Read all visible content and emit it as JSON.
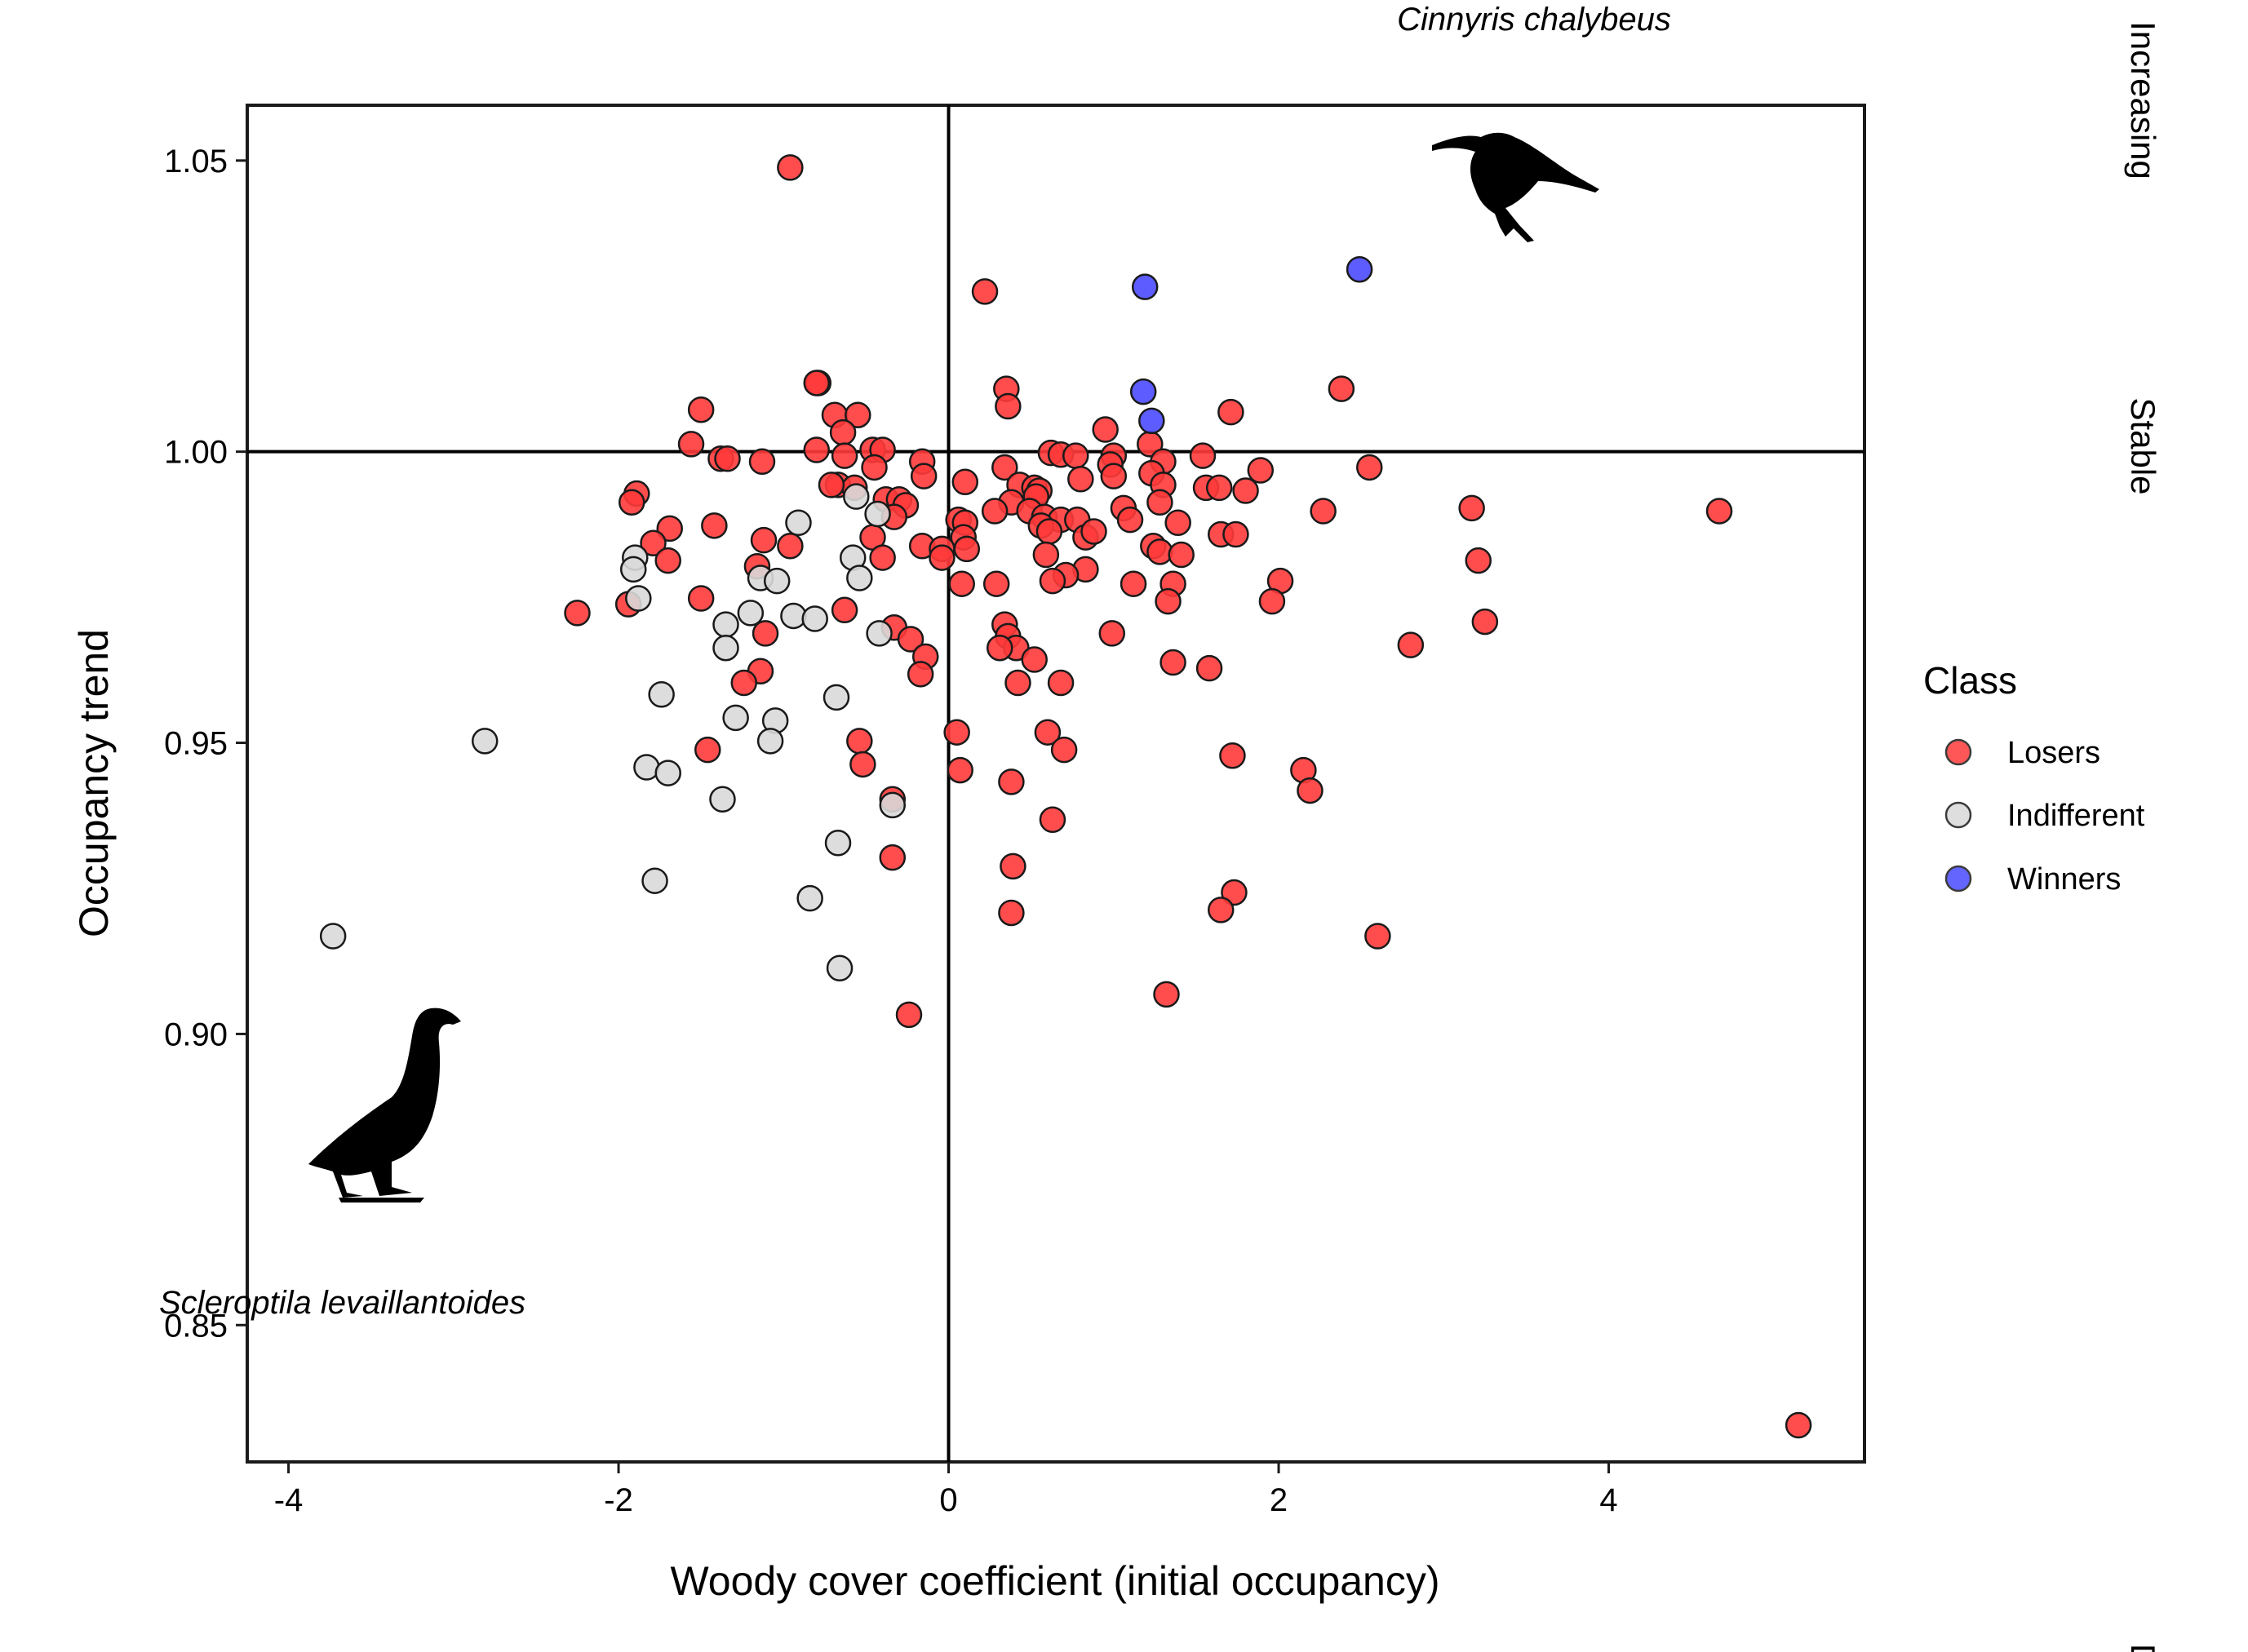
{
  "chart_data": {
    "type": "scatter",
    "xlabel": "Woody cover coefficient (initial occupancy)",
    "ylabel": "Occupancy trend",
    "xlim": [
      -4.25,
      5.55
    ],
    "ylim": [
      0.8265,
      1.0595
    ],
    "x_ticks": [
      -4,
      -2,
      0,
      2,
      4
    ],
    "x_tick_labels": [
      "-4",
      "-2",
      "0",
      "2",
      "4"
    ],
    "y_ticks": [
      0.85,
      0.9,
      0.95,
      1.0,
      1.05
    ],
    "y_tick_labels": [
      "0.85",
      "0.90",
      "0.95",
      "1.00",
      "1.05"
    ],
    "reference_lines": {
      "x": 0,
      "y": 1.0
    },
    "grid": false,
    "legend": {
      "title": "Class",
      "placement": "right",
      "entries": [
        {
          "label": "Losers",
          "color": "#ff3a3a"
        },
        {
          "label": "Indifferent",
          "color": "#d9d9d9"
        },
        {
          "label": "Winners",
          "color": "#4a4aff"
        }
      ]
    },
    "side_labels": [
      "Increasing",
      "Stable",
      "D"
    ],
    "annotations": {
      "top_species": "Cinnyris chalybeus",
      "bottom_species": "Scleroptila levaillantoides"
    },
    "series": [
      {
        "name": "Losers",
        "color": "#ff3a3a",
        "points": [
          [
            -0.96,
            1.0488
          ],
          [
            0.22,
            1.0275
          ],
          [
            -0.79,
            1.0118
          ],
          [
            -0.8,
            1.0118
          ],
          [
            0.35,
            1.0108
          ],
          [
            2.38,
            1.0108
          ],
          [
            0.36,
            1.0078
          ],
          [
            -1.5,
            1.0072
          ],
          [
            1.71,
            1.0068
          ],
          [
            -0.69,
            1.0063
          ],
          [
            -0.55,
            1.0063
          ],
          [
            -0.64,
            1.0033
          ],
          [
            0.95,
            1.0038
          ],
          [
            -1.56,
            1.0013
          ],
          [
            -0.8,
            1.0003
          ],
          [
            -0.46,
            1.0003
          ],
          [
            -0.4,
            1.0003
          ],
          [
            1.22,
            1.0013
          ],
          [
            0.62,
            0.9998
          ],
          [
            0.68,
            0.9995
          ],
          [
            0.77,
            0.9993
          ],
          [
            1.0,
            0.9993
          ],
          [
            1.54,
            0.9993
          ],
          [
            -1.38,
            0.9988
          ],
          [
            -1.34,
            0.9988
          ],
          [
            -1.13,
            0.9983
          ],
          [
            -0.63,
            0.9993
          ],
          [
            -0.45,
            0.9973
          ],
          [
            -0.16,
            0.9983
          ],
          [
            1.3,
            0.9983
          ],
          [
            0.98,
            0.9978
          ],
          [
            0.34,
            0.9973
          ],
          [
            2.55,
            0.9973
          ],
          [
            1.89,
            0.9968
          ],
          [
            -0.15,
            0.9958
          ],
          [
            -0.67,
            0.9943
          ],
          [
            -0.57,
            0.9938
          ],
          [
            -0.71,
            0.9943
          ],
          [
            0.1,
            0.9948
          ],
          [
            0.43,
            0.9943
          ],
          [
            0.52,
            0.9938
          ],
          [
            0.55,
            0.9933
          ],
          [
            1.23,
            0.9963
          ],
          [
            1.0,
            0.9958
          ],
          [
            0.8,
            0.9953
          ],
          [
            1.3,
            0.9943
          ],
          [
            1.56,
            0.9938
          ],
          [
            1.64,
            0.9938
          ],
          [
            1.8,
            0.9933
          ],
          [
            -1.89,
            0.9928
          ],
          [
            -0.38,
            0.9918
          ],
          [
            -0.3,
            0.9918
          ],
          [
            -0.26,
            0.9908
          ],
          [
            0.38,
            0.9913
          ],
          [
            0.53,
            0.9923
          ],
          [
            1.28,
            0.9913
          ],
          [
            1.06,
            0.9903
          ],
          [
            -1.92,
            0.9913
          ],
          [
            0.28,
            0.9898
          ],
          [
            0.49,
            0.9898
          ],
          [
            0.58,
            0.9888
          ],
          [
            0.68,
            0.9883
          ],
          [
            0.78,
            0.9883
          ],
          [
            2.27,
            0.9898
          ],
          [
            3.17,
            0.9903
          ],
          [
            4.67,
            0.9898
          ],
          [
            -0.33,
            0.9888
          ],
          [
            0.06,
            0.9883
          ],
          [
            0.1,
            0.9878
          ],
          [
            0.56,
            0.9873
          ],
          [
            0.61,
            0.9863
          ],
          [
            0.83,
            0.9853
          ],
          [
            0.88,
            0.9863
          ],
          [
            1.1,
            0.9883
          ],
          [
            1.39,
            0.9878
          ],
          [
            1.65,
            0.9858
          ],
          [
            1.74,
            0.9858
          ],
          [
            -1.42,
            0.9873
          ],
          [
            -1.69,
            0.9868
          ],
          [
            -1.79,
            0.9843
          ],
          [
            -0.46,
            0.9853
          ],
          [
            0.09,
            0.9853
          ],
          [
            -1.12,
            0.9848
          ],
          [
            -0.96,
            0.9838
          ],
          [
            -0.16,
            0.9838
          ],
          [
            1.24,
            0.9838
          ],
          [
            1.28,
            0.9828
          ],
          [
            -0.04,
            0.9833
          ],
          [
            0.11,
            0.9833
          ],
          [
            -0.04,
            0.9818
          ],
          [
            -0.4,
            0.9818
          ],
          [
            -1.7,
            0.9813
          ],
          [
            -1.16,
            0.9803
          ],
          [
            0.59,
            0.9823
          ],
          [
            1.41,
            0.9823
          ],
          [
            3.21,
            0.9813
          ],
          [
            0.83,
            0.9798
          ],
          [
            0.71,
            0.9788
          ],
          [
            0.63,
            0.9778
          ],
          [
            2.01,
            0.9778
          ],
          [
            0.08,
            0.9773
          ],
          [
            0.29,
            0.9773
          ],
          [
            1.12,
            0.9773
          ],
          [
            1.36,
            0.9773
          ],
          [
            -1.5,
            0.9748
          ],
          [
            1.96,
            0.9743
          ],
          [
            1.33,
            0.9743
          ],
          [
            -2.25,
            0.9723
          ],
          [
            -1.94,
            0.9738
          ],
          [
            -0.63,
            0.9728
          ],
          [
            0.34,
            0.9703
          ],
          [
            3.25,
            0.9708
          ],
          [
            -1.11,
            0.9688
          ],
          [
            -0.33,
            0.9698
          ],
          [
            -0.23,
            0.9678
          ],
          [
            0.36,
            0.9683
          ],
          [
            0.99,
            0.9688
          ],
          [
            0.41,
            0.9663
          ],
          [
            2.8,
            0.9668
          ],
          [
            0.31,
            0.9663
          ],
          [
            -0.14,
            0.9648
          ],
          [
            0.52,
            0.9643
          ],
          [
            1.36,
            0.9638
          ],
          [
            1.58,
            0.9628
          ],
          [
            -0.17,
            0.9618
          ],
          [
            -1.14,
            0.9623
          ],
          [
            -1.24,
            0.9603
          ],
          [
            0.42,
            0.9603
          ],
          [
            0.68,
            0.9603
          ],
          [
            0.05,
            0.9518
          ],
          [
            0.6,
            0.9518
          ],
          [
            -0.54,
            0.9503
          ],
          [
            0.7,
            0.9488
          ],
          [
            -1.46,
            0.9488
          ],
          [
            -0.52,
            0.9463
          ],
          [
            1.72,
            0.9478
          ],
          [
            2.15,
            0.9453
          ],
          [
            0.07,
            0.9453
          ],
          [
            0.38,
            0.9433
          ],
          [
            2.19,
            0.9418
          ],
          [
            -0.34,
            0.9403
          ],
          [
            0.63,
            0.9368
          ],
          [
            -0.34,
            0.9303
          ],
          [
            0.39,
            0.9288
          ],
          [
            1.73,
            0.9243
          ],
          [
            0.38,
            0.9208
          ],
          [
            1.65,
            0.9213
          ],
          [
            2.6,
            0.9168
          ],
          [
            1.32,
            0.9068
          ],
          [
            -0.24,
            0.9033
          ],
          [
            5.15,
            0.8328
          ]
        ]
      },
      {
        "name": "Indifferent",
        "color": "#d9d9d9",
        "points": [
          [
            -0.91,
            0.9878
          ],
          [
            -0.56,
            0.9923
          ],
          [
            -0.43,
            0.9893
          ],
          [
            -0.58,
            0.9818
          ],
          [
            -1.9,
            0.9818
          ],
          [
            -1.91,
            0.9798
          ],
          [
            -0.54,
            0.9783
          ],
          [
            -1.14,
            0.9783
          ],
          [
            -1.04,
            0.9778
          ],
          [
            -1.88,
            0.9748
          ],
          [
            -1.2,
            0.9723
          ],
          [
            -0.94,
            0.9718
          ],
          [
            -0.81,
            0.9713
          ],
          [
            -1.35,
            0.9703
          ],
          [
            -0.42,
            0.9688
          ],
          [
            -1.35,
            0.9663
          ],
          [
            -1.74,
            0.9583
          ],
          [
            -0.68,
            0.9578
          ],
          [
            -2.81,
            0.9503
          ],
          [
            -1.29,
            0.9543
          ],
          [
            -1.05,
            0.9538
          ],
          [
            -1.08,
            0.9503
          ],
          [
            -1.83,
            0.9458
          ],
          [
            -1.7,
            0.9448
          ],
          [
            -1.37,
            0.9403
          ],
          [
            -0.34,
            0.9393
          ],
          [
            -0.67,
            0.9328
          ],
          [
            -1.78,
            0.9263
          ],
          [
            -0.84,
            0.9233
          ],
          [
            -3.73,
            0.9168
          ],
          [
            -0.66,
            0.9113
          ]
        ]
      },
      {
        "name": "Winners",
        "color": "#4a4aff",
        "points": [
          [
            2.49,
            1.0313
          ],
          [
            1.19,
            1.0283
          ],
          [
            1.18,
            1.0103
          ],
          [
            1.23,
            1.0053
          ]
        ]
      }
    ]
  }
}
